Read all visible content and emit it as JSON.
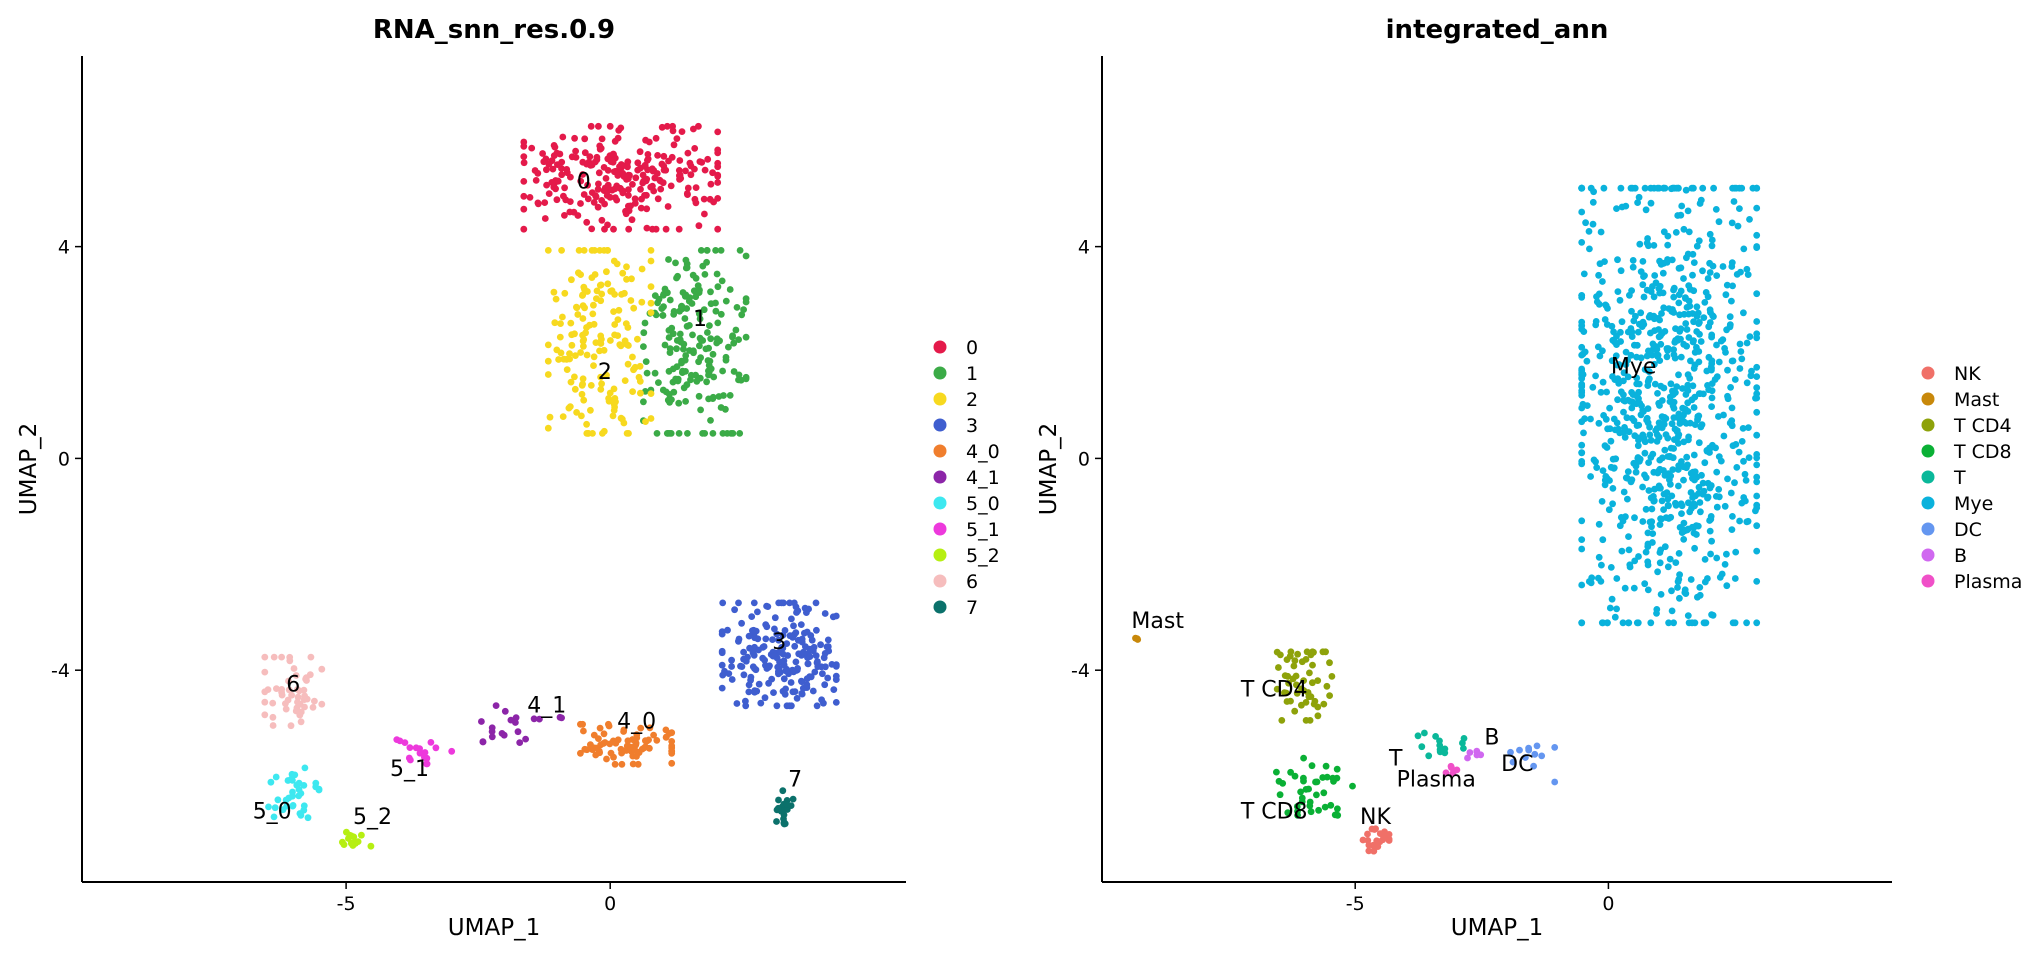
{
  "chart_data": [
    {
      "type": "scatter",
      "title": "RNA_snn_res.0.9",
      "xlabel": "UMAP_1",
      "ylabel": "UMAP_2",
      "xlim": [
        -10.0,
        5.6
      ],
      "ylim": [
        -8.0,
        7.6
      ],
      "xticks": [
        "-5",
        "0"
      ],
      "xtick_values": [
        -5,
        0
      ],
      "yticks": [
        "-4",
        "0",
        "4"
      ],
      "ytick_values": [
        -4,
        0,
        4
      ],
      "grid": false,
      "legend_position": "right",
      "series": [
        {
          "name": "0",
          "color": "#e41a4a",
          "center": [
            0.2,
            5.3
          ],
          "spread": [
            1.7,
            0.9
          ],
          "n": 260
        },
        {
          "name": "1",
          "color": "#3bab47",
          "center": [
            1.6,
            2.2
          ],
          "spread": [
            0.9,
            1.6
          ],
          "n": 200
        },
        {
          "name": "2",
          "color": "#f7d91f",
          "center": [
            -0.2,
            2.2
          ],
          "spread": [
            0.9,
            1.6
          ],
          "n": 170
        },
        {
          "name": "3",
          "color": "#3f5ecf",
          "center": [
            3.2,
            -3.7
          ],
          "spread": [
            1.0,
            0.9
          ],
          "n": 210
        },
        {
          "name": "4_0",
          "color": "#f07e2d",
          "center": [
            0.3,
            -5.4
          ],
          "spread": [
            0.8,
            0.35
          ],
          "n": 80
        },
        {
          "name": "4_1",
          "color": "#8c25a8",
          "center": [
            -2.0,
            -5.1
          ],
          "spread": [
            1.0,
            0.4
          ],
          "n": 20
        },
        {
          "name": "5_0",
          "color": "#3de8f0",
          "center": [
            -6.0,
            -6.3
          ],
          "spread": [
            0.45,
            0.45
          ],
          "n": 35
        },
        {
          "name": "5_1",
          "color": "#ed39dc",
          "center": [
            -3.6,
            -5.5
          ],
          "spread": [
            0.6,
            0.25
          ],
          "n": 18
        },
        {
          "name": "5_2",
          "color": "#b6ef12",
          "center": [
            -4.8,
            -7.2
          ],
          "spread": [
            0.25,
            0.15
          ],
          "n": 15
        },
        {
          "name": "6",
          "color": "#f6bdbd",
          "center": [
            -6.0,
            -4.4
          ],
          "spread": [
            0.5,
            0.6
          ],
          "n": 50
        },
        {
          "name": "7",
          "color": "#0b716b",
          "center": [
            3.3,
            -6.6
          ],
          "spread": [
            0.15,
            0.3
          ],
          "n": 20
        }
      ],
      "cluster_labels": [
        {
          "text": "0",
          "x": -0.5,
          "y": 5.1
        },
        {
          "text": "1",
          "x": 1.7,
          "y": 2.5
        },
        {
          "text": "2",
          "x": -0.1,
          "y": 1.5
        },
        {
          "text": "3",
          "x": 3.2,
          "y": -3.6
        },
        {
          "text": "4_0",
          "x": 0.5,
          "y": -5.1
        },
        {
          "text": "4_1",
          "x": -1.2,
          "y": -4.8
        },
        {
          "text": "5_0",
          "x": -6.4,
          "y": -6.8
        },
        {
          "text": "5_1",
          "x": -3.8,
          "y": -6.0
        },
        {
          "text": "5_2",
          "x": -4.5,
          "y": -6.9
        },
        {
          "text": "6",
          "x": -6.0,
          "y": -4.4
        },
        {
          "text": "7",
          "x": 3.5,
          "y": -6.2
        }
      ]
    },
    {
      "type": "scatter",
      "title": "integrated_ann",
      "xlabel": "UMAP_1",
      "ylabel": "UMAP_2",
      "xlim": [
        -10.0,
        5.6
      ],
      "ylim": [
        -8.0,
        7.6
      ],
      "xticks": [
        "-5",
        "0"
      ],
      "xtick_values": [
        -5,
        0
      ],
      "yticks": [
        "-4",
        "0",
        "4"
      ],
      "ytick_values": [
        -4,
        0,
        4
      ],
      "grid": false,
      "legend_position": "right",
      "series": [
        {
          "name": "NK",
          "color": "#f07068",
          "center": [
            -4.6,
            -7.2
          ],
          "spread": [
            0.25,
            0.2
          ],
          "n": 22
        },
        {
          "name": "Mast",
          "color": "#c8880a",
          "center": [
            -9.3,
            -3.4
          ],
          "spread": [
            0.05,
            0.05
          ],
          "n": 3
        },
        {
          "name": "T CD4",
          "color": "#8ea20a",
          "center": [
            -6.0,
            -4.3
          ],
          "spread": [
            0.5,
            0.6
          ],
          "n": 55
        },
        {
          "name": "T CD8",
          "color": "#0ab035",
          "center": [
            -5.8,
            -6.2
          ],
          "spread": [
            0.7,
            0.5
          ],
          "n": 40
        },
        {
          "name": "T",
          "color": "#0ab89a",
          "center": [
            -3.5,
            -5.4
          ],
          "spread": [
            0.6,
            0.2
          ],
          "n": 14
        },
        {
          "name": "Mye",
          "color": "#0ab2dc",
          "center": [
            1.2,
            1.0
          ],
          "spread": [
            1.6,
            3.8
          ],
          "n": 870
        },
        {
          "name": "DC",
          "color": "#6496f0",
          "center": [
            -1.6,
            -5.7
          ],
          "spread": [
            0.5,
            0.4
          ],
          "n": 12
        },
        {
          "name": "B",
          "color": "#d068f0",
          "center": [
            -2.6,
            -5.6
          ],
          "spread": [
            0.2,
            0.1
          ],
          "n": 5
        },
        {
          "name": "Plasma",
          "color": "#f050c8",
          "center": [
            -3.1,
            -5.9
          ],
          "spread": [
            0.1,
            0.1
          ],
          "n": 5
        }
      ],
      "cluster_labels": [
        {
          "text": "Mye",
          "x": 0.5,
          "y": 1.6
        },
        {
          "text": "Mast",
          "x": -8.9,
          "y": -3.2
        },
        {
          "text": "T CD4",
          "x": -6.6,
          "y": -4.5
        },
        {
          "text": "T CD8",
          "x": -6.6,
          "y": -6.8
        },
        {
          "text": "NK",
          "x": -4.6,
          "y": -6.9
        },
        {
          "text": "T",
          "x": -4.2,
          "y": -5.8
        },
        {
          "text": "Plasma",
          "x": -3.4,
          "y": -6.2
        },
        {
          "text": "B",
          "x": -2.3,
          "y": -5.4
        },
        {
          "text": "DC",
          "x": -1.8,
          "y": -5.9
        }
      ]
    }
  ]
}
